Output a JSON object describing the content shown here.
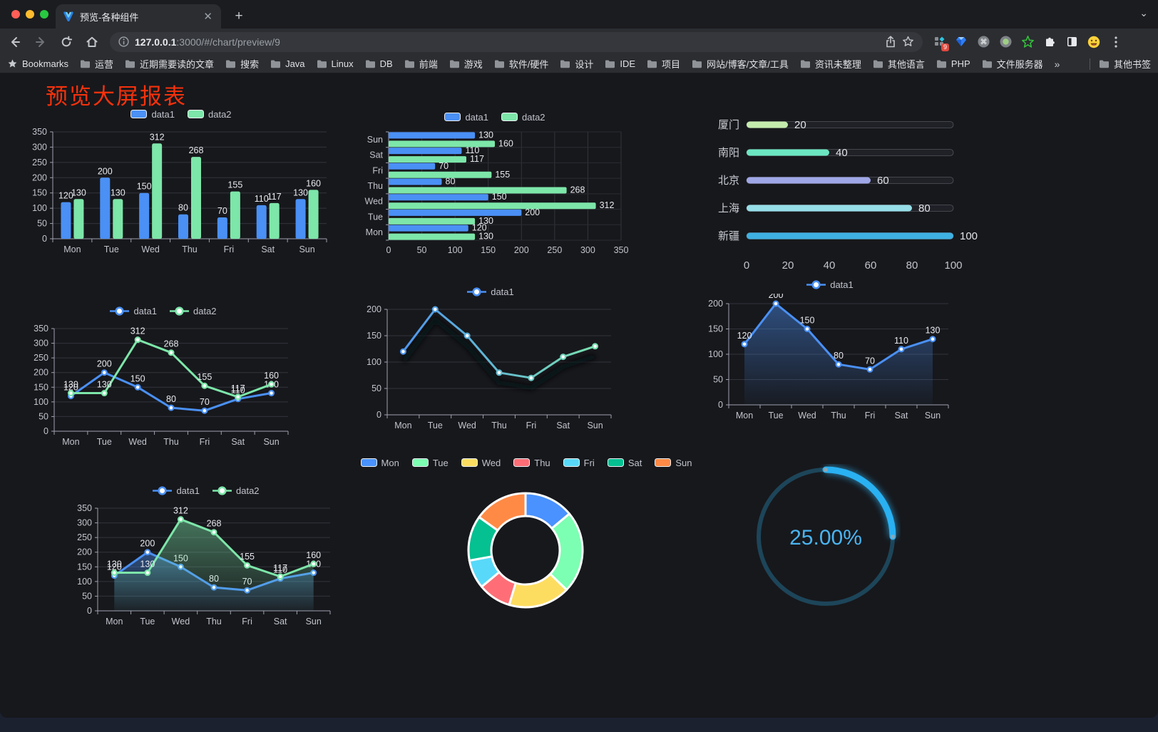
{
  "browser": {
    "tab_title": "预览-各种组件",
    "url_host": "127.0.0.1",
    "url_path": ":3000/#/chart/preview/9",
    "extension_badge": "9",
    "bookmarks_root": "Bookmarks",
    "bookmark_items": [
      "运营",
      "近期需要读的文章",
      "搜索",
      "Java",
      "Linux",
      "DB",
      "前端",
      "游戏",
      "软件/硬件",
      "设计",
      "IDE",
      "项目",
      "网站/博客/文章/工具",
      "资讯未整理",
      "其他语言",
      "PHP",
      "文件服务器"
    ],
    "bookmarks_overflow": "»",
    "other_bookmarks": "其他书签"
  },
  "page": {
    "title": "预览大屏报表"
  },
  "chart_data": [
    {
      "id": "bar-grouped",
      "type": "bar",
      "categories": [
        "Mon",
        "Tue",
        "Wed",
        "Thu",
        "Fri",
        "Sat",
        "Sun"
      ],
      "series": [
        {
          "name": "data1",
          "color": "#4a90f5",
          "values": [
            120,
            200,
            150,
            80,
            70,
            110,
            130
          ]
        },
        {
          "name": "data2",
          "color": "#7de6a9",
          "values": [
            130,
            130,
            312,
            268,
            155,
            117,
            160
          ]
        }
      ],
      "ylim": [
        0,
        350
      ],
      "yticks": [
        0,
        50,
        100,
        150,
        200,
        250,
        300,
        350
      ]
    },
    {
      "id": "bar-horizontal",
      "type": "bar-horizontal",
      "categories": [
        "Mon",
        "Tue",
        "Wed",
        "Thu",
        "Fri",
        "Sat",
        "Sun"
      ],
      "series": [
        {
          "name": "data1",
          "color": "#4a90f5",
          "values": [
            120,
            200,
            150,
            80,
            70,
            110,
            130
          ]
        },
        {
          "name": "data2",
          "color": "#7de6a9",
          "values": [
            130,
            130,
            312,
            268,
            155,
            117,
            160
          ]
        }
      ],
      "xlim": [
        0,
        350
      ],
      "xticks": [
        0,
        50,
        100,
        150,
        200,
        250,
        300,
        350
      ]
    },
    {
      "id": "city-progress",
      "type": "progress-bar",
      "max": 100,
      "xticks": [
        0,
        20,
        40,
        60,
        80,
        100
      ],
      "items": [
        {
          "label": "厦门",
          "value": 20,
          "color": "#c4ebad"
        },
        {
          "label": "南阳",
          "value": 40,
          "color": "#6be6c1"
        },
        {
          "label": "北京",
          "value": 60,
          "color": "#a0a7e6"
        },
        {
          "label": "上海",
          "value": 80,
          "color": "#96dee8"
        },
        {
          "label": "新疆",
          "value": 100,
          "color": "#3fb1e3"
        }
      ]
    },
    {
      "id": "line-two",
      "type": "line",
      "show_labels": true,
      "categories": [
        "Mon",
        "Tue",
        "Wed",
        "Thu",
        "Fri",
        "Sat",
        "Sun"
      ],
      "series": [
        {
          "name": "data1",
          "color": "#4a90f5",
          "values": [
            120,
            200,
            150,
            80,
            70,
            110,
            130
          ]
        },
        {
          "name": "data2",
          "color": "#7de6a9",
          "values": [
            130,
            130,
            312,
            268,
            155,
            117,
            160
          ]
        }
      ],
      "ylim": [
        0,
        350
      ],
      "yticks": [
        0,
        50,
        100,
        150,
        200,
        250,
        300,
        350
      ]
    },
    {
      "id": "line-gradient",
      "type": "line",
      "show_labels": false,
      "shadow": true,
      "categories": [
        "Mon",
        "Tue",
        "Wed",
        "Thu",
        "Fri",
        "Sat",
        "Sun"
      ],
      "series": [
        {
          "name": "data1",
          "gradient": [
            "#4a90f5",
            "#7de6a9"
          ],
          "values": [
            120,
            200,
            150,
            80,
            70,
            110,
            130
          ]
        }
      ],
      "ylim": [
        0,
        200
      ],
      "yticks": [
        0,
        50,
        100,
        150,
        200
      ]
    },
    {
      "id": "line-area",
      "type": "line",
      "show_labels": true,
      "categories": [
        "Mon",
        "Tue",
        "Wed",
        "Thu",
        "Fri",
        "Sat",
        "Sun"
      ],
      "series": [
        {
          "name": "data1",
          "color": "#4a90f5",
          "area": true,
          "values": [
            120,
            200,
            150,
            80,
            70,
            110,
            130
          ]
        }
      ],
      "ylim": [
        0,
        200
      ],
      "yticks": [
        0,
        50,
        100,
        150,
        200
      ]
    },
    {
      "id": "line-area-two",
      "type": "line",
      "show_labels": true,
      "categories": [
        "Mon",
        "Tue",
        "Wed",
        "Thu",
        "Fri",
        "Sat",
        "Sun"
      ],
      "series": [
        {
          "name": "data1",
          "color": "#4a90f5",
          "area": true,
          "values": [
            120,
            200,
            150,
            80,
            70,
            110,
            130
          ]
        },
        {
          "name": "data2",
          "color": "#7de6a9",
          "area": true,
          "values": [
            130,
            130,
            312,
            268,
            155,
            117,
            160
          ]
        }
      ],
      "ylim": [
        0,
        350
      ],
      "yticks": [
        0,
        50,
        100,
        150,
        200,
        250,
        300,
        350
      ]
    },
    {
      "id": "donut",
      "type": "pie",
      "items": [
        {
          "label": "Mon",
          "value": 120,
          "color": "#4992ff"
        },
        {
          "label": "Tue",
          "value": 200,
          "color": "#7cffb2"
        },
        {
          "label": "Wed",
          "value": 150,
          "color": "#fddd60"
        },
        {
          "label": "Thu",
          "value": 80,
          "color": "#ff6e76"
        },
        {
          "label": "Fri",
          "value": 70,
          "color": "#58d9f9"
        },
        {
          "label": "Sat",
          "value": 110,
          "color": "#05c091"
        },
        {
          "label": "Sun",
          "value": 130,
          "color": "#ff8a45"
        }
      ]
    },
    {
      "id": "gauge",
      "type": "progress-circle",
      "value": 25,
      "label": "25.00%",
      "bar_color": "#29b1f2",
      "track_color": "#1d4559",
      "text_color": "#4ab4f0"
    }
  ]
}
